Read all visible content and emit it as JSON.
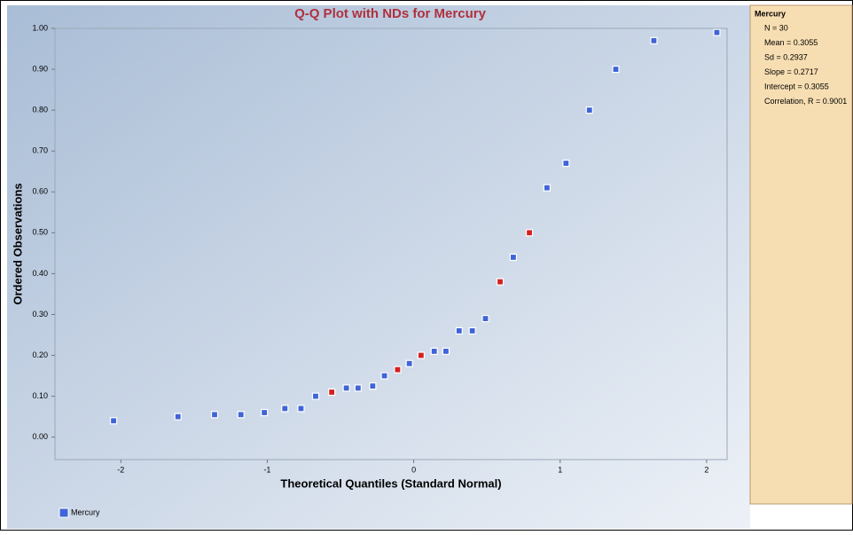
{
  "chart_data": {
    "type": "scatter",
    "title": "Q-Q Plot with NDs for Mercury",
    "x_label": "Theoretical Quantiles (Standard Normal)",
    "y_label": "Ordered Observations",
    "x": [
      -2.05,
      -1.61,
      -1.36,
      -1.18,
      -1.02,
      -0.88,
      -0.77,
      -0.67,
      -0.56,
      -0.46,
      -0.38,
      -0.28,
      -0.2,
      -0.11,
      -0.03,
      0.05,
      0.14,
      0.22,
      0.31,
      0.4,
      0.49,
      0.59,
      0.68,
      0.79,
      0.91,
      1.04,
      1.2,
      1.38,
      1.64,
      2.07
    ],
    "series": [
      {
        "name": "Mercury",
        "color": "#3f64d8",
        "values": [
          0.04,
          0.05,
          0.055,
          0.055,
          0.06,
          0.07,
          0.07,
          0.1,
          0.11,
          0.12,
          0.12,
          0.125,
          0.15,
          0.165,
          0.18,
          0.2,
          0.21,
          0.21,
          0.26,
          0.26,
          0.29,
          0.38,
          0.44,
          0.5,
          0.61,
          0.67,
          0.8,
          0.9,
          0.97,
          0.99
        ],
        "colors": [
          "#3f64d8",
          "#3f64d8",
          "#3f64d8",
          "#3f64d8",
          "#3f64d8",
          "#3f64d8",
          "#3f64d8",
          "#3f64d8",
          "#d42020",
          "#3f64d8",
          "#3f64d8",
          "#3f64d8",
          "#3f64d8",
          "#d42020",
          "#3f64d8",
          "#d42020",
          "#3f64d8",
          "#3f64d8",
          "#3f64d8",
          "#3f64d8",
          "#3f64d8",
          "#d42020",
          "#3f64d8",
          "#d42020",
          "#3f64d8",
          "#3f64d8",
          "#3f64d8",
          "#3f64d8",
          "#3f64d8",
          "#3f64d8"
        ]
      }
    ],
    "xlim": [
      -2.45,
      2.14
    ],
    "xticks": [
      -2,
      -1,
      0,
      1,
      2
    ],
    "ylim": [
      -0.055,
      1.0
    ],
    "yticks": [
      {
        "value": 0,
        "label": "0.00"
      },
      {
        "value": 0.1,
        "label": "0.10"
      },
      {
        "value": 0.2,
        "label": "0.20"
      },
      {
        "value": 0.3,
        "label": "0.30"
      },
      {
        "value": 0.4,
        "label": "0.40"
      },
      {
        "value": 0.5,
        "label": "0.50"
      },
      {
        "value": 0.6,
        "label": "0.60"
      },
      {
        "value": 0.7,
        "label": "0.70"
      },
      {
        "value": 0.8,
        "label": "0.80"
      },
      {
        "value": 0.9,
        "label": "0.90"
      },
      {
        "value": 1.0,
        "label": "1.00"
      }
    ],
    "grid": false,
    "legend": "bottom-left"
  },
  "stats_panel": {
    "title": "Mercury",
    "lines": [
      "N = 30",
      "Mean = 0.3055",
      "Sd = 0.2937",
      "Slope = 0.2717",
      "Intercept = 0.3055",
      "Correlation, R = 0.9001"
    ]
  }
}
